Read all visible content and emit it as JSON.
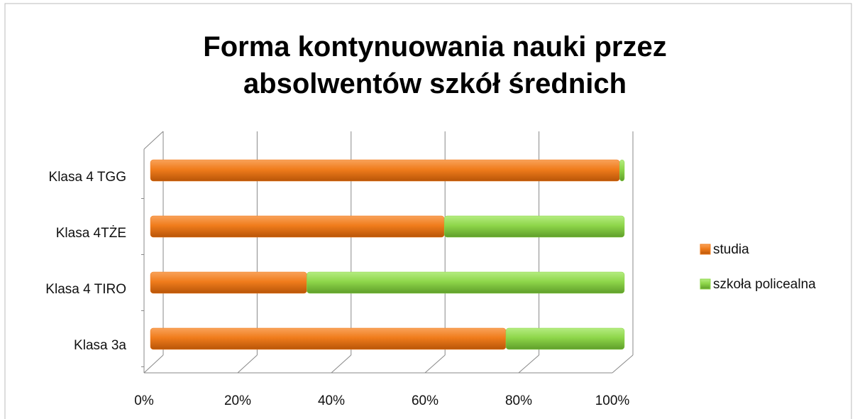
{
  "chart_data": {
    "type": "bar",
    "orientation": "horizontal",
    "stacked": "percent",
    "title": "Forma kontynuowania nauki przez absolwentów szkół średnich",
    "categories": [
      "Klasa 3a",
      "Klasa 4 TIRO",
      "Klasa 4TŻE",
      "Klasa 4 TGG"
    ],
    "series": [
      {
        "name": "studia",
        "color": "#f07c1c",
        "values": [
          75,
          33,
          62,
          99
        ]
      },
      {
        "name": "szkoła policealna",
        "color": "#8ed64a",
        "values": [
          25,
          67,
          38,
          1
        ]
      }
    ],
    "xlim": [
      0,
      100
    ],
    "xticks": [
      {
        "value": 0,
        "label": "0%"
      },
      {
        "value": 20,
        "label": "20%"
      },
      {
        "value": 40,
        "label": "40%"
      },
      {
        "value": 60,
        "label": "60%"
      },
      {
        "value": 80,
        "label": "80%"
      },
      {
        "value": 100,
        "label": "100%"
      }
    ],
    "grid": true,
    "legend": "right"
  }
}
